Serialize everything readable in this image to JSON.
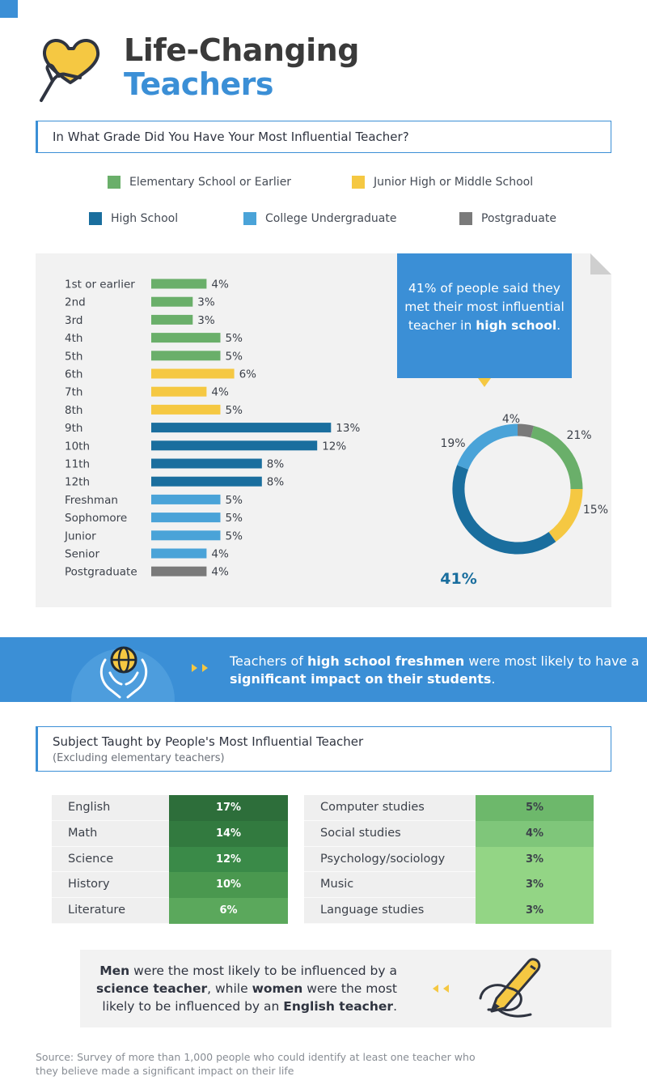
{
  "title": {
    "line1": "Life-Changing",
    "line2": "Teachers"
  },
  "section1": {
    "question": "In What Grade Did You Have Your Most Influential Teacher?"
  },
  "legend": [
    {
      "label": "Elementary School or Earlier",
      "color": "#6aaf6a"
    },
    {
      "label": "Junior High or Middle School",
      "color": "#f5c842"
    },
    {
      "label": "High School",
      "color": "#1a6e9e"
    },
    {
      "label": "College Undergraduate",
      "color": "#4aa3d8"
    },
    {
      "label": "Postgraduate",
      "color": "#7a7a7a"
    }
  ],
  "callout": {
    "pre": "41% of people said they met their most influential teacher in",
    "bold": "high school",
    "post": "."
  },
  "chart_data": [
    {
      "type": "bar",
      "orientation": "horizontal",
      "categories": [
        "1st or earlier",
        "2nd",
        "3rd",
        "4th",
        "5th",
        "6th",
        "7th",
        "8th",
        "9th",
        "10th",
        "11th",
        "12th",
        "Freshman",
        "Sophomore",
        "Junior",
        "Senior",
        "Postgraduate"
      ],
      "values": [
        4,
        3,
        3,
        5,
        5,
        6,
        4,
        5,
        13,
        12,
        8,
        8,
        5,
        5,
        5,
        4,
        4
      ],
      "labels": [
        "4%",
        "3%",
        "3%",
        "5%",
        "5%",
        "6%",
        "4%",
        "5%",
        "13%",
        "12%",
        "8%",
        "8%",
        "5%",
        "5%",
        "5%",
        "4%",
        "4%"
      ],
      "groups": [
        0,
        0,
        0,
        0,
        0,
        1,
        1,
        1,
        2,
        2,
        2,
        2,
        3,
        3,
        3,
        3,
        4
      ],
      "unit": "%"
    },
    {
      "type": "pie",
      "variant": "donut",
      "categories": [
        "Postgraduate",
        "Elementary School or Earlier",
        "Junior High or Middle School",
        "High School",
        "College Undergraduate"
      ],
      "values": [
        4,
        21,
        15,
        41,
        19
      ],
      "labels": [
        "4%",
        "21%",
        "15%",
        "41%",
        "19%"
      ],
      "colors": [
        "#7a7a7a",
        "#6aaf6a",
        "#f5c842",
        "#1a6e9e",
        "#4aa3d8"
      ]
    }
  ],
  "banner": {
    "pre": "Teachers of",
    "bold1": "high school freshmen",
    "mid": "were most likely to have a",
    "bold2": "significant impact on their students",
    "post": "."
  },
  "section2": {
    "question": "Subject Taught by People's Most Influential Teacher",
    "subnote": "(Excluding elementary teachers)"
  },
  "subjects_left": [
    {
      "name": "English",
      "value": "17%",
      "color": "#2d6e3a"
    },
    {
      "name": "Math",
      "value": "14%",
      "color": "#327a3f"
    },
    {
      "name": "Science",
      "value": "12%",
      "color": "#3a8a48"
    },
    {
      "name": "History",
      "value": "10%",
      "color": "#4a984f"
    },
    {
      "name": "Literature",
      "value": "6%",
      "color": "#5ba85c"
    }
  ],
  "subjects_right": [
    {
      "name": "Computer studies",
      "value": "5%",
      "color": "#6db86b"
    },
    {
      "name": "Social studies",
      "value": "4%",
      "color": "#7fc67a"
    },
    {
      "name": "Psychology/sociology",
      "value": "3%",
      "color": "#93d585"
    },
    {
      "name": "Music",
      "value": "3%",
      "color": "#93d585"
    },
    {
      "name": "Language studies",
      "value": "3%",
      "color": "#93d585"
    }
  ],
  "gender_note": {
    "b1": "Men",
    "t1": "were the most likely to be influenced by a",
    "b2": "science teacher",
    "t2": ", while",
    "b3": "women",
    "t3": "were the most likely to be influenced by an",
    "b4": "English teacher",
    "t4": "."
  },
  "source": "Source: Survey of more than 1,000 people who could identify at least one teacher who they believe made a significant impact on their life",
  "icons": {
    "title": "heart-hand-icon",
    "banner": "globe-hands-icon",
    "gender": "pencil-hand-icon"
  }
}
